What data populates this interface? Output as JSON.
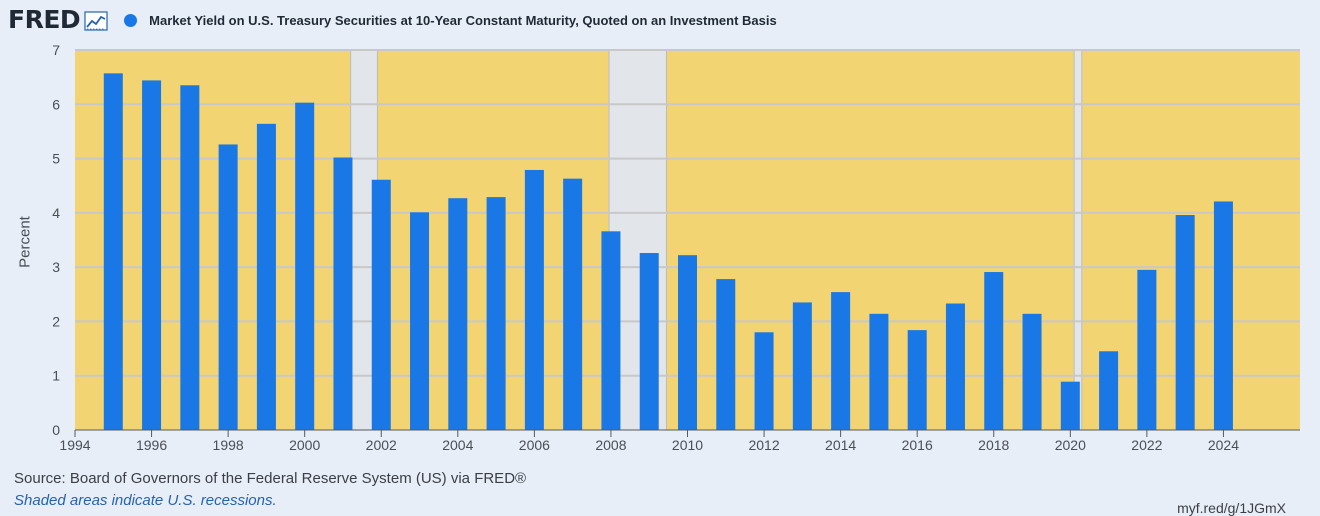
{
  "header": {
    "logo_text": "FRED",
    "logo_icon": "line-chart-icon",
    "series_label": "Market Yield on U.S. Treasury Securities at 10-Year Constant Maturity, Quoted on an Investment Basis"
  },
  "colors": {
    "bar": "#1978e5",
    "plot_background": "#f2d472",
    "recession_shade": "#e2e6ea",
    "page_background": "#e8eef7",
    "gridline": "#c8c8c8"
  },
  "footer": {
    "source": "Source: Board of Governors of the Federal Reserve System (US) via FRED®",
    "note": "Shaded areas indicate U.S. recessions.",
    "shortlink": "myf.red/g/1JGmX"
  },
  "chart_data": {
    "type": "bar",
    "ylabel": "Percent",
    "xlabel": "",
    "ylim": [
      0,
      7
    ],
    "xlim": [
      1994,
      2026
    ],
    "yticks": [
      0,
      1,
      2,
      3,
      4,
      5,
      6,
      7
    ],
    "xticks": [
      1994,
      1996,
      1998,
      2000,
      2002,
      2004,
      2006,
      2008,
      2010,
      2012,
      2014,
      2016,
      2018,
      2020,
      2022,
      2024
    ],
    "grid": true,
    "recessions": [
      [
        2001.2,
        2001.9
      ],
      [
        2007.95,
        2009.45
      ],
      [
        2020.1,
        2020.3
      ]
    ],
    "series": [
      {
        "x": [
          1995,
          1996,
          1997,
          1998,
          1999,
          2000,
          2001,
          2002,
          2003,
          2004,
          2005,
          2006,
          2007,
          2008,
          2009,
          2010,
          2011,
          2012,
          2013,
          2014,
          2015,
          2016,
          2017,
          2018,
          2019,
          2020,
          2021,
          2022,
          2023,
          2024
        ],
        "values": [
          6.57,
          6.44,
          6.35,
          5.26,
          5.64,
          6.03,
          5.02,
          4.61,
          4.01,
          4.27,
          4.29,
          4.79,
          4.63,
          3.66,
          3.26,
          3.22,
          2.78,
          1.8,
          2.35,
          2.54,
          2.14,
          1.84,
          2.33,
          2.91,
          2.14,
          0.89,
          1.45,
          2.95,
          3.96,
          4.21
        ]
      }
    ]
  }
}
